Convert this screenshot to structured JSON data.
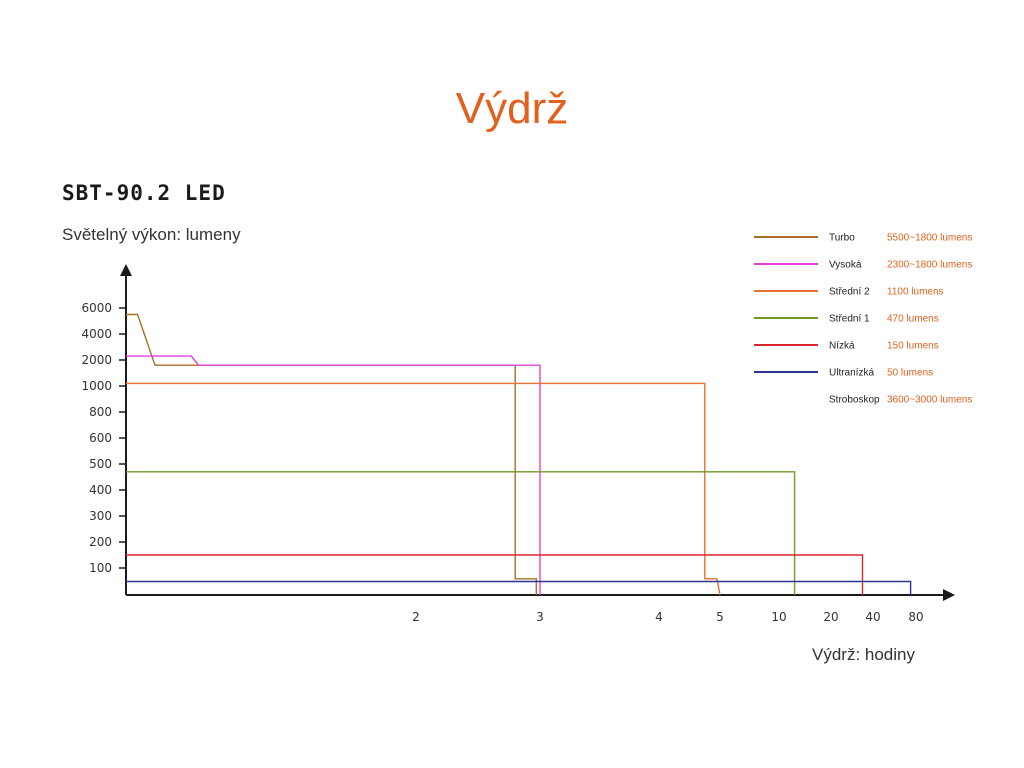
{
  "header": {
    "title": "Výdrž",
    "product": "SBT-90.2 LED"
  },
  "chart_data": {
    "type": "line",
    "ylabel": "Světelný výkon: lumeny",
    "xlabel": "Výdrž: hodiny",
    "y_ticks": [
      "6000",
      "4000",
      "2000",
      "1000",
      "800",
      "600",
      "500",
      "400",
      "300",
      "200",
      "100"
    ],
    "x_ticks": [
      "2",
      "3",
      "4",
      "5",
      "10",
      "20",
      "40",
      "80"
    ],
    "legend": [
      {
        "name": "Turbo",
        "range": "5500~1800 lumens",
        "color": "#a86f28"
      },
      {
        "name": "Vysoká",
        "range": "2300~1800 lumens",
        "color": "#e040e0"
      },
      {
        "name": "Střední 2",
        "range": "1100 lumens",
        "color": "#e8712e"
      },
      {
        "name": "Střední 1",
        "range": "470 lumens",
        "color": "#6e9a26"
      },
      {
        "name": "Nízká",
        "range": "150 lumens",
        "color": "#d8262e"
      },
      {
        "name": "Ultranízká",
        "range": "50 lumens",
        "color": "#2a3494"
      },
      {
        "name": "Stroboskop",
        "range": "3600~3000 lumens",
        "color": ""
      }
    ],
    "series": [
      {
        "name": "Turbo",
        "color": "#a86f28",
        "points": [
          [
            0,
            5500
          ],
          [
            0.08,
            5500
          ],
          [
            0.2,
            1800
          ],
          [
            2.8,
            1800
          ],
          [
            2.8,
            60
          ],
          [
            2.97,
            60
          ],
          [
            2.97,
            0
          ]
        ]
      },
      {
        "name": "Vysoká",
        "color": "#e040e0",
        "points": [
          [
            0,
            2300
          ],
          [
            0.45,
            2300
          ],
          [
            0.5,
            1800
          ],
          [
            3,
            1800
          ],
          [
            3,
            0
          ]
        ]
      },
      {
        "name": "Střední 2",
        "color": "#e8712e",
        "points": [
          [
            0,
            1100
          ],
          [
            4.75,
            1100
          ],
          [
            4.75,
            60
          ],
          [
            4.95,
            60
          ],
          [
            5,
            0
          ]
        ]
      },
      {
        "name": "Střední 1",
        "color": "#6e9a26",
        "points": [
          [
            0,
            470
          ],
          [
            13,
            470
          ],
          [
            13,
            0
          ]
        ]
      },
      {
        "name": "Nízká",
        "color": "#d8262e",
        "points": [
          [
            0,
            150
          ],
          [
            35,
            150
          ],
          [
            35,
            0
          ]
        ]
      },
      {
        "name": "Ultranízká",
        "color": "#2a3494",
        "points": [
          [
            0,
            50
          ],
          [
            75,
            50
          ],
          [
            75,
            0
          ]
        ]
      }
    ]
  }
}
